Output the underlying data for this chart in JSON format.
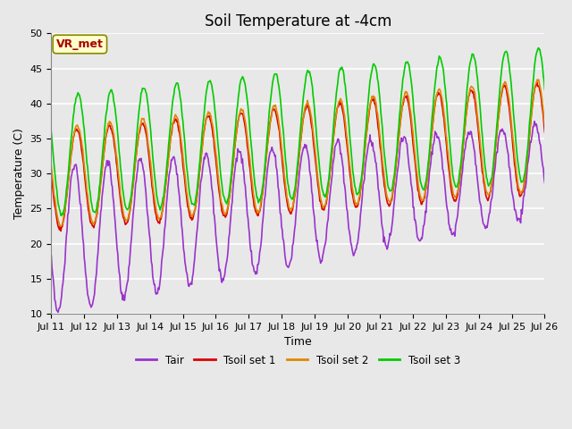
{
  "title": "Soil Temperature at -4cm",
  "xlabel": "Time",
  "ylabel": "Temperature (C)",
  "ylim": [
    10,
    50
  ],
  "start_day": 11,
  "n_days": 15,
  "bg_color": "#e0e0e0",
  "plot_bg_color": "#e8e8e8",
  "grid_color": "#ffffff",
  "annotation_text": "VR_met",
  "annotation_bg": "#ffffcc",
  "annotation_edge": "#8B4513",
  "colors": {
    "Tair": "#9933cc",
    "Tsoil1": "#dd0000",
    "Tsoil2": "#dd8800",
    "Tsoil3": "#00cc00"
  },
  "legend_labels": [
    "Tair",
    "Tsoil set 1",
    "Tsoil set 2",
    "Tsoil set 3"
  ],
  "title_fontsize": 12,
  "axis_fontsize": 9,
  "tick_fontsize": 8,
  "linewidth": 1.2
}
